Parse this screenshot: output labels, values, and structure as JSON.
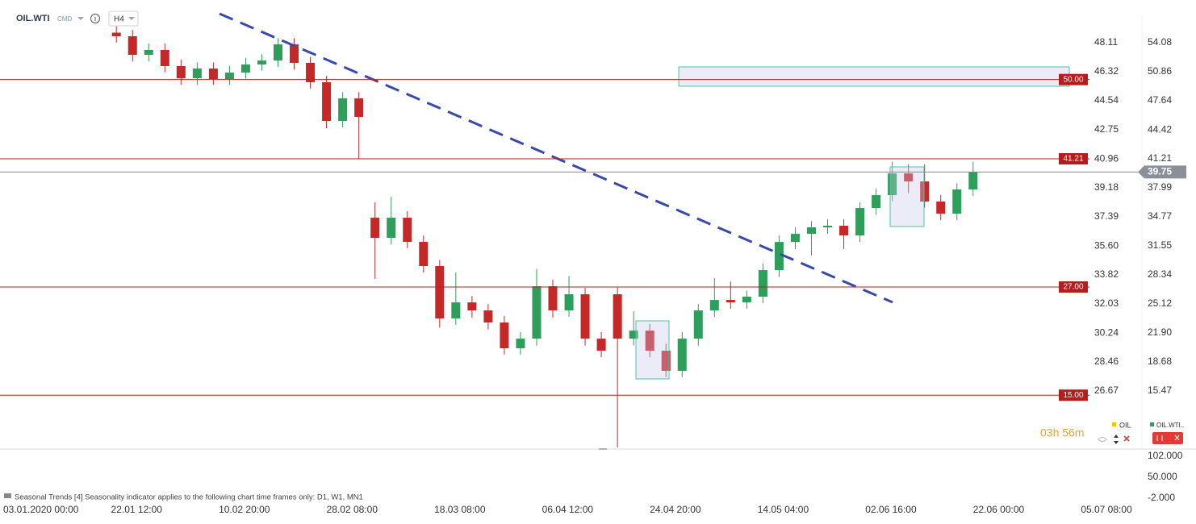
{
  "toolbar": {
    "symbol": "OIL.WTI",
    "market": "CMD",
    "timeframe": "H4"
  },
  "legend": [
    "OIL",
    "OIL.WTI.."
  ],
  "timer": "03h 56m",
  "indicator_note": "Seasonal  Trends  [4]  Seasonality  indicator  applies  to the following  chart  time frames  only:  D1,  W1,  MN1",
  "chart_data": {
    "type": "candlestick",
    "up_color": "#2e9e5b",
    "down_color": "#c62828",
    "x": [
      10.5,
      12,
      13.5,
      15,
      16.5,
      18,
      19.5,
      21,
      22.5,
      24,
      25.5,
      27,
      28.5,
      30,
      31.5,
      33,
      34.5,
      36,
      37.5,
      39,
      40.5,
      42,
      43.5,
      45,
      46.5,
      48,
      49.5,
      51,
      52.5,
      54,
      55.5,
      57,
      58.5,
      60,
      61.5,
      63,
      64.5,
      66,
      67.5,
      69,
      70.5,
      72,
      73.5,
      75,
      76.5,
      78,
      79.5,
      81,
      82.5,
      84,
      85.5,
      87,
      88.5,
      90
    ],
    "open": [
      55.2,
      54.8,
      52.74,
      53.28,
      51.49,
      50.15,
      51.22,
      50.06,
      50.77,
      51.67,
      52.11,
      53.9,
      51.85,
      49.7,
      45.41,
      47.91,
      34.68,
      32.45,
      34.68,
      32,
      29.32,
      23.51,
      25.29,
      24.4,
      23.06,
      20.2,
      21.27,
      27.08,
      24.4,
      26.19,
      21.27,
      26.19,
      21.27,
      22.16,
      19.93,
      17.7,
      21.27,
      24.4,
      25.56,
      25.29,
      25.92,
      28.87,
      31.99,
      32.89,
      33.61,
      33.79,
      32.71,
      35.75,
      37.18,
      39.59,
      38.7,
      36.47,
      35.13,
      37.81
    ],
    "high": [
      55.9,
      55.5,
      54.0,
      54.0,
      52.2,
      51.9,
      51.9,
      51.5,
      52.4,
      52.8,
      54.6,
      54.6,
      52.5,
      50.4,
      48.6,
      48.6,
      36.4,
      37.0,
      35.4,
      32.7,
      30.0,
      28.6,
      26.0,
      25.1,
      23.8,
      22.0,
      29.0,
      27.8,
      28.2,
      26.9,
      22.0,
      27.0,
      24.3,
      22.9,
      20.7,
      22.0,
      25.1,
      28.0,
      27.6,
      26.6,
      29.6,
      32.7,
      33.6,
      34.3,
      34.5,
      34.5,
      36.4,
      37.9,
      40.9,
      40.6,
      40.6,
      37.2,
      38.5,
      40.9
    ],
    "low": [
      54.1,
      52.0,
      52.0,
      50.8,
      49.4,
      49.4,
      49.4,
      49.4,
      50.1,
      51.0,
      51.4,
      51.1,
      49.0,
      44.6,
      44.7,
      41.2,
      27.9,
      31.7,
      31.3,
      28.6,
      22.5,
      22.8,
      23.6,
      22.3,
      19.5,
      19.5,
      20.5,
      23.6,
      23.7,
      20.5,
      19.2,
      9.2,
      20.5,
      19.2,
      17.0,
      17.0,
      20.5,
      23.7,
      24.6,
      24.6,
      25.2,
      28.1,
      31.2,
      30.5,
      32.9,
      31.2,
      32.0,
      35.0,
      36.5,
      37.4,
      35.8,
      34.4,
      34.4,
      37.1
    ],
    "close": [
      54.8,
      52.74,
      53.28,
      51.49,
      50.15,
      51.22,
      50.06,
      50.77,
      51.67,
      52.11,
      53.9,
      51.85,
      49.7,
      45.41,
      47.91,
      45.86,
      32.45,
      34.68,
      32,
      29.32,
      23.51,
      25.29,
      24.4,
      23.06,
      20.2,
      21.27,
      27.08,
      24.4,
      26.19,
      21.27,
      19.93,
      21.27,
      22.16,
      19.93,
      17.7,
      21.27,
      24.4,
      25.56,
      25.29,
      25.92,
      28.87,
      31.99,
      32.89,
      33.61,
      33.79,
      32.71,
      35.75,
      37.18,
      39.59,
      38.7,
      36.47,
      35.13,
      37.81,
      39.75
    ],
    "xlim": [
      0,
      100.8
    ],
    "xticks": [
      {
        "value": 0,
        "label": "03.01.2020  00:00"
      },
      {
        "value": 10,
        "label": "22.01  12:00"
      },
      {
        "value": 20,
        "label": "10.02  20:00"
      },
      {
        "value": 30,
        "label": "28.02  08:00"
      },
      {
        "value": 40,
        "label": "18.03  08:00"
      },
      {
        "value": 50,
        "label": "06.04  12:00"
      },
      {
        "value": 60,
        "label": "24.04  20:00"
      },
      {
        "value": 70,
        "label": "14.05  04:00"
      },
      {
        "value": 80,
        "label": "02.06  16:00"
      },
      {
        "value": 90,
        "label": "22.06  00:00"
      },
      {
        "value": 100,
        "label": "05.07  08:00"
      }
    ],
    "ylim": [
      9.03,
      58.82
    ],
    "yticks": [
      54.08,
      50.86,
      47.64,
      44.42,
      41.21,
      37.99,
      34.77,
      31.55,
      28.34,
      25.12,
      {
        "value": 21.9,
        "label": "21.90"
      },
      18.68,
      15.47
    ],
    "y2lim": [
      23.1,
      50.74
    ],
    "y2ticks": [
      48.11,
      46.32,
      44.54,
      42.75,
      40.96,
      39.18,
      37.39,
      {
        "value": 35.6,
        "label": "35.60"
      },
      33.82,
      32.03,
      30.24,
      28.46,
      26.67
    ],
    "levels": [
      {
        "value": 50,
        "label": "50.00"
      },
      41.21,
      {
        "value": 27,
        "label": "27.00"
      },
      {
        "value": 15,
        "label": "15.00"
      }
    ],
    "level_color": "#b71c1c",
    "current_price": 39.75,
    "indicator_ylim": [
      -13.8,
      117.7
    ],
    "indicator_yticks": [
      {
        "value": 102,
        "label": "102.000"
      },
      {
        "value": 50,
        "label": "50.000"
      },
      {
        "value": -2,
        "label": "-2.000"
      }
    ]
  }
}
